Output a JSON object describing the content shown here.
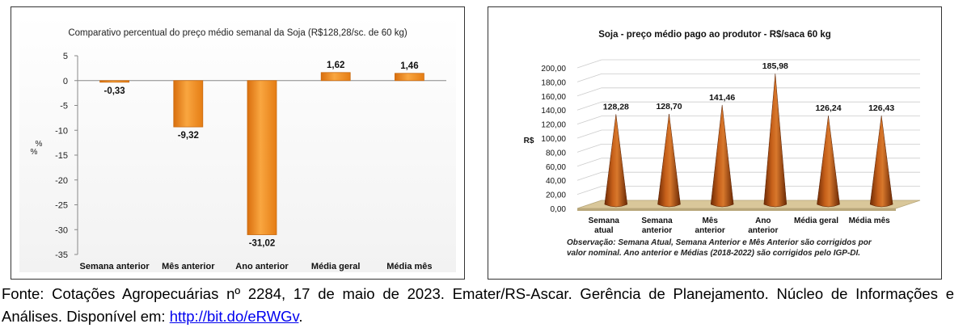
{
  "chart_data": [
    {
      "type": "bar",
      "title": "Comparativo percentual do preço médio semanal da Soja (R$128,28/sc. de 60 kg)",
      "ylabel": "%",
      "ylabel2": "%",
      "categories": [
        "Semana anterior",
        "Mês anterior",
        "Ano anterior",
        "Média geral",
        "Média mês"
      ],
      "values": [
        -0.33,
        -9.32,
        -31.02,
        1.62,
        1.46
      ],
      "value_labels": [
        "-0,33",
        "-9,32",
        "-31,02",
        "1,62",
        "1,46"
      ],
      "ylim": [
        -35,
        5
      ],
      "yticks": [
        "5",
        "0",
        "-5",
        "-10",
        "-15",
        "-20",
        "-25",
        "-30",
        "-35"
      ],
      "ytick_values": [
        5,
        0,
        -5,
        -10,
        -15,
        -20,
        -25,
        -30,
        -35
      ],
      "grid": false,
      "bar_color": "#f08a1c"
    },
    {
      "type": "bar",
      "style": "3d-cone",
      "title": "Soja - preço médio pago ao produtor - R$/saca 60 kg",
      "ylabel": "R$",
      "categories": [
        [
          "Semana",
          "atual"
        ],
        [
          "Semana",
          "anterior"
        ],
        [
          "Mês",
          "anterior"
        ],
        [
          "Ano",
          "anterior"
        ],
        [
          "Média geral"
        ],
        [
          "Média mês"
        ]
      ],
      "values": [
        128.28,
        128.7,
        141.46,
        185.98,
        126.24,
        126.43
      ],
      "value_labels": [
        "128,28",
        "128,70",
        "141,46",
        "185,98",
        "126,24",
        "126,43"
      ],
      "ylim": [
        0,
        200
      ],
      "yticks": [
        "0,00",
        "20,00",
        "40,00",
        "60,00",
        "80,00",
        "100,00",
        "120,00",
        "140,00",
        "160,00",
        "180,00",
        "200,00"
      ],
      "ytick_values": [
        0,
        20,
        40,
        60,
        80,
        100,
        120,
        140,
        160,
        180,
        200
      ],
      "grid": true,
      "cone_color": "#a84a0c",
      "floor_color": "#d9c79a",
      "note_line1": "Observação: Semana Atual, Semana Anterior e Mês Anterior são corrigidos por",
      "note_line2": "valor nominal. Ano anterior e Médias (2018-2022) são corrigidos pelo IGP-DI."
    }
  ],
  "caption": {
    "text": "Fonte: Cotações Agropecuárias nº 2284, 17 de maio de 2023. Emater/RS-Ascar. Gerência de Planejamento. Núcleo de Informações e Análises. Disponível em: ",
    "link": "http://bit.do/eRWGv",
    "end": "."
  }
}
